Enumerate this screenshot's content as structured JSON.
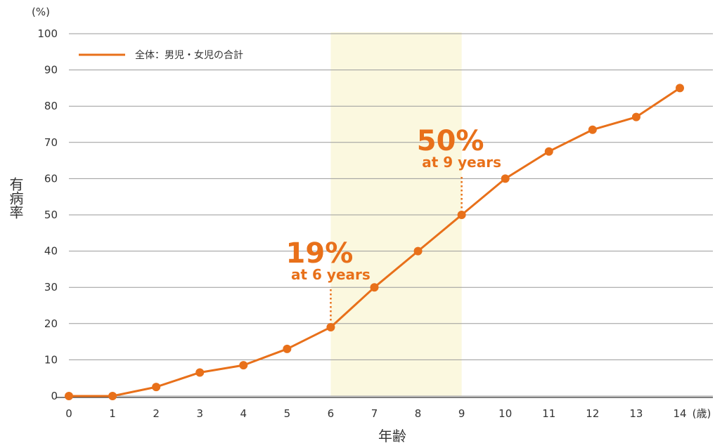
{
  "chart_data": {
    "type": "line",
    "x": [
      0,
      1,
      2,
      3,
      4,
      5,
      6,
      7,
      8,
      9,
      10,
      11,
      12,
      13,
      14
    ],
    "series": [
      {
        "name": "全体：男児・女児の合計",
        "values": [
          0,
          0,
          2.5,
          6.5,
          8.5,
          13,
          19,
          30,
          40,
          50,
          60,
          67.5,
          73.5,
          77,
          85
        ]
      }
    ],
    "ylim": [
      0,
      100
    ],
    "yticks": [
      0,
      10,
      20,
      30,
      40,
      50,
      60,
      70,
      80,
      90,
      100
    ],
    "xticks": [
      0,
      1,
      2,
      3,
      4,
      5,
      6,
      7,
      8,
      9,
      10,
      11,
      12,
      13,
      14
    ],
    "ylabel": "有病率",
    "yunit": "(%)",
    "xlabel": "年齢",
    "xunit": "(歳)",
    "legend_position": "top-left",
    "grid": true,
    "highlight_range": [
      6,
      9
    ],
    "annotations": [
      {
        "x": 6,
        "y": 19,
        "big": "19%",
        "small": "at 6 years"
      },
      {
        "x": 9,
        "y": 50,
        "big": "50%",
        "small": "at 9 years"
      }
    ],
    "colors": {
      "line": "#e8701a",
      "annotation": "#e8701a",
      "highlight": "#fbf8df",
      "grid": "#9a9a9a"
    }
  }
}
